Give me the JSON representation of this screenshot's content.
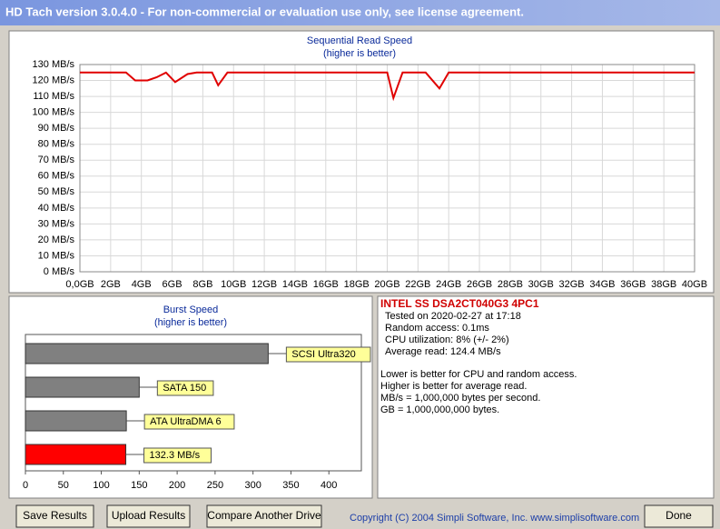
{
  "window": {
    "title": "HD Tach version 3.0.4.0  - For non-commercial or evaluation use only, see license agreement."
  },
  "read_chart": {
    "type": "line",
    "title": "Sequential Read Speed",
    "subtitle": "(higher is better)",
    "x": [
      0,
      3,
      3.6,
      4.4,
      5,
      5.6,
      6.2,
      7,
      7.6,
      8.6,
      9,
      9.6,
      12,
      16,
      20,
      20.4,
      21,
      22.5,
      23.4,
      24,
      28,
      32,
      36,
      40
    ],
    "values": [
      125,
      125,
      120,
      120,
      122,
      125,
      119,
      124,
      125,
      125,
      117,
      125,
      125,
      125,
      125,
      109,
      125,
      125,
      115,
      125,
      125,
      125,
      125,
      125
    ],
    "color": "#e00000",
    "grid": true,
    "xlim": [
      0,
      40
    ],
    "ylim": [
      0,
      130
    ],
    "xticks": [
      {
        "value": 0,
        "label": "0,0GB"
      },
      {
        "value": 2,
        "label": "2GB"
      },
      {
        "value": 4,
        "label": "4GB"
      },
      {
        "value": 6,
        "label": "6GB"
      },
      {
        "value": 8,
        "label": "8GB"
      },
      {
        "value": 10,
        "label": "10GB"
      },
      {
        "value": 12,
        "label": "12GB"
      },
      {
        "value": 14,
        "label": "14GB"
      },
      {
        "value": 16,
        "label": "16GB"
      },
      {
        "value": 18,
        "label": "18GB"
      },
      {
        "value": 20,
        "label": "20GB"
      },
      {
        "value": 22,
        "label": "22GB"
      },
      {
        "value": 24,
        "label": "24GB"
      },
      {
        "value": 26,
        "label": "26GB"
      },
      {
        "value": 28,
        "label": "28GB"
      },
      {
        "value": 30,
        "label": "30GB"
      },
      {
        "value": 32,
        "label": "32GB"
      },
      {
        "value": 34,
        "label": "34GB"
      },
      {
        "value": 36,
        "label": "36GB"
      },
      {
        "value": 38,
        "label": "38GB"
      },
      {
        "value": 40,
        "label": "40GB"
      }
    ],
    "yticks": [
      {
        "value": 0,
        "label": "0 MB/s"
      },
      {
        "value": 10,
        "label": "10 MB/s"
      },
      {
        "value": 20,
        "label": "20 MB/s"
      },
      {
        "value": 30,
        "label": "30 MB/s"
      },
      {
        "value": 40,
        "label": "40 MB/s"
      },
      {
        "value": 50,
        "label": "50 MB/s"
      },
      {
        "value": 60,
        "label": "60 MB/s"
      },
      {
        "value": 70,
        "label": "70 MB/s"
      },
      {
        "value": 80,
        "label": "80 MB/s"
      },
      {
        "value": 90,
        "label": "90 MB/s"
      },
      {
        "value": 100,
        "label": "100 MB/s"
      },
      {
        "value": 110,
        "label": "110 MB/s"
      },
      {
        "value": 120,
        "label": "120 MB/s"
      },
      {
        "value": 130,
        "label": "130 MB/s"
      }
    ]
  },
  "burst_chart": {
    "type": "bar",
    "title": "Burst Speed",
    "subtitle": "(higher is better)",
    "categories": [
      "SCSI Ultra320",
      "SATA 150",
      "ATA UltraDMA 6",
      null
    ],
    "values": [
      320,
      150,
      133,
      132.3
    ],
    "value_labels": [
      null,
      null,
      null,
      "132.3 MB/s"
    ],
    "colors": [
      "#808080",
      "#808080",
      "#808080",
      "#ff0000"
    ],
    "xlim": [
      0,
      450
    ],
    "xticks": [
      0,
      50,
      100,
      150,
      200,
      250,
      300,
      350,
      400
    ]
  },
  "info": {
    "drive": "INTEL SS DSA2CT040G3 4PC1",
    "lines": [
      "Tested on 2020-02-27 at 17:18",
      "Random access: 0.1ms",
      "CPU utilization: 8% (+/- 2%)",
      "Average read: 124.4 MB/s"
    ],
    "notes": [
      "Lower is better for CPU and random access.",
      "Higher is better for average read.",
      "MB/s = 1,000,000 bytes per second.",
      "GB = 1,000,000,000 bytes."
    ]
  },
  "buttons": [
    "Save Results",
    "Upload Results",
    "Compare Another Drive",
    "Done"
  ],
  "copyright": "Copyright (C) 2004 Simpli Software, Inc. www.simplisoftware.com"
}
